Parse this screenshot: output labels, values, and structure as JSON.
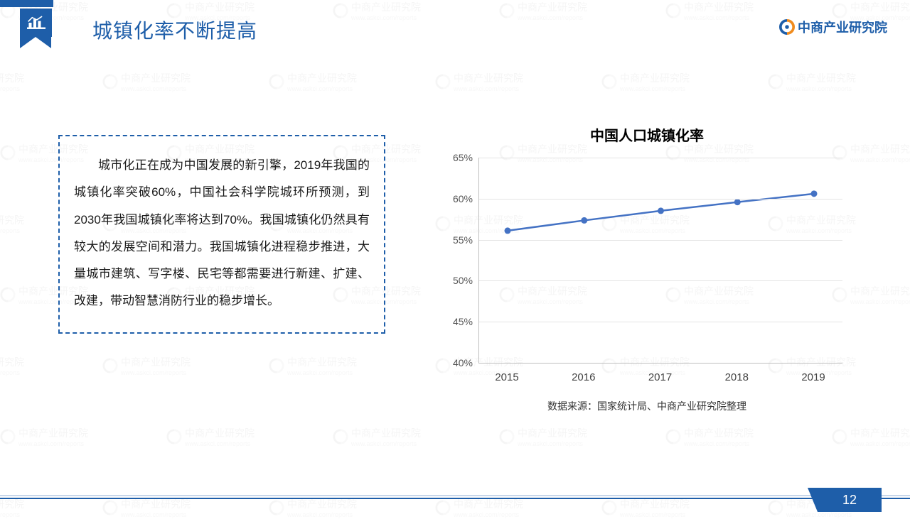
{
  "header": {
    "slide_title": "城镇化率不断提高",
    "brand_text": "中商产业研究院",
    "brand_circle_color_a": "#1e5ea9",
    "brand_circle_color_b": "#f08b1d"
  },
  "body": {
    "paragraph": "城市化正在成为中国发展的新引擎，2019年我国的城镇化率突破60%，中国社会科学院城环所预测，到2030年我国城镇化率将达到70%。我国城镇化仍然具有较大的发展空间和潜力。我国城镇化进程稳步推进，大量城市建筑、写字楼、民宅等都需要进行新建、扩建、改建，带动智慧消防行业的稳步增长。"
  },
  "chart": {
    "type": "line",
    "title": "中国人口城镇化率",
    "caption": "数据来源：国家统计局、中商产业研究院整理",
    "x_labels": [
      "2015",
      "2016",
      "2017",
      "2018",
      "2019"
    ],
    "y_ticks": [
      40,
      45,
      50,
      55,
      60,
      65
    ],
    "y_tick_labels": [
      "40%",
      "45%",
      "50%",
      "55%",
      "60%",
      "65%"
    ],
    "ylim": [
      40,
      65
    ],
    "values": [
      56.1,
      57.35,
      58.52,
      59.58,
      60.6
    ],
    "line_color": "#4472c4",
    "line_width": 2.5,
    "marker_radius": 4.5,
    "marker_fill": "#4472c4",
    "grid_color": "#e3e3e3",
    "axis_color": "#bfbfbf",
    "background_color": "#ffffff",
    "label_fontsize": 14
  },
  "footer": {
    "page_number": "12",
    "accent_color": "#1e5ea9",
    "light_line_color": "#c7d6ea"
  },
  "watermark": {
    "text": "中商产业研究院",
    "sub": "www.askci.com/reports"
  }
}
